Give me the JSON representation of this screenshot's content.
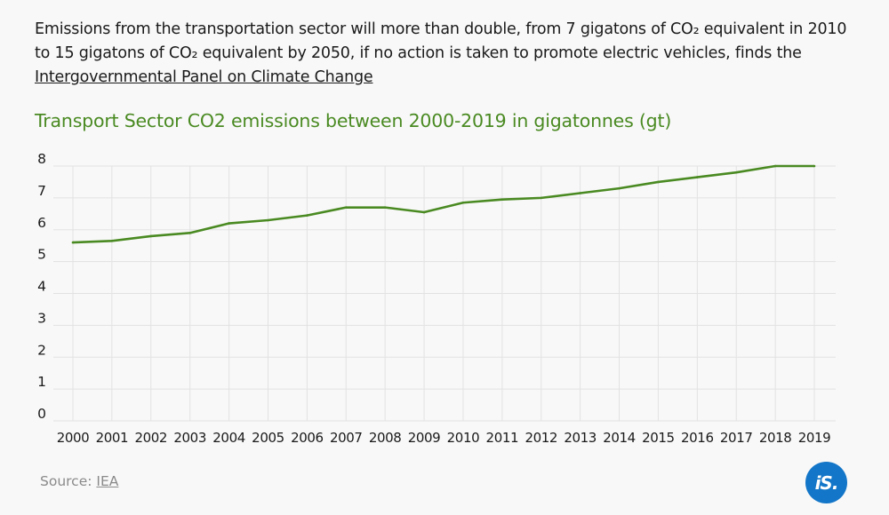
{
  "intro": {
    "text": "Emissions from the transportation sector will more than double, from 7 gigatons of CO₂ equivalent in 2010 to 15 gigatons of CO₂ equivalent by 2050, if no action is taken to promote electric vehicles, finds the",
    "link_text": "Intergovernmental Panel on Climate Change"
  },
  "source": {
    "label": "Source:",
    "link_text": "IEA"
  },
  "logo": {
    "text": "iS."
  },
  "colors": {
    "line": "#4a8a22",
    "title": "#4a8a22",
    "grid": "#e2e2e2",
    "logo": "#1376c8"
  },
  "chart_data": {
    "type": "line",
    "title": "Transport Sector CO2 emissions between 2000-2019 in gigatonnes (gt)",
    "categories": [
      "2000",
      "2001",
      "2002",
      "2003",
      "2004",
      "2005",
      "2006",
      "2007",
      "2008",
      "2009",
      "2010",
      "2011",
      "2012",
      "2013",
      "2014",
      "2015",
      "2016",
      "2017",
      "2018",
      "2019"
    ],
    "series": [
      {
        "values": [
          5.6,
          5.65,
          5.8,
          5.9,
          6.2,
          6.3,
          6.45,
          6.7,
          6.7,
          6.55,
          6.85,
          6.95,
          7.0,
          7.15,
          7.3,
          7.5,
          7.65,
          7.8,
          8.0,
          8.0
        ]
      }
    ],
    "yticks": [
      0,
      1,
      2,
      3,
      4,
      5,
      6,
      7,
      8
    ],
    "ylim": [
      0,
      8
    ],
    "grid": true,
    "xlabel": "",
    "ylabel": ""
  }
}
